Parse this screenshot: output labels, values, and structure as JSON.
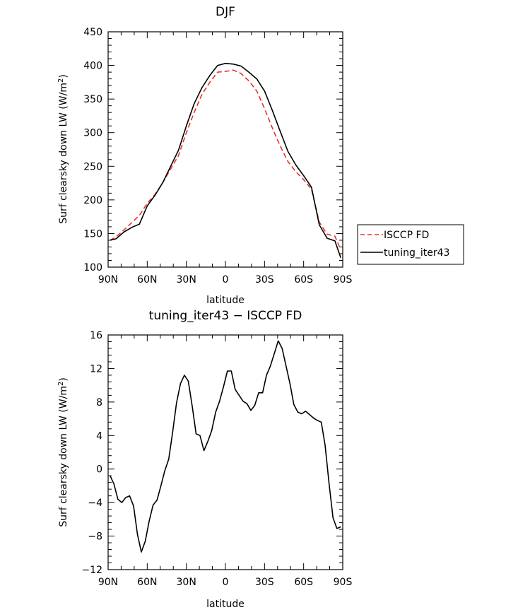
{
  "chart_data": [
    {
      "type": "line",
      "title": "DJF",
      "xlabel": "latitude",
      "ylabel": "Surf clearsky down LW (W/m",
      "ylabel_sup": "2",
      "ylabel_close": ")",
      "xlim": [
        90,
        -90
      ],
      "ylim": [
        100,
        450
      ],
      "x_tick_values": [
        90,
        60,
        30,
        0,
        -30,
        -60,
        -90
      ],
      "x_tick_labels": [
        "90N",
        "60N",
        "30N",
        "0",
        "30S",
        "60S",
        "90S"
      ],
      "y_tick_values": [
        100,
        150,
        200,
        250,
        300,
        350,
        400,
        450
      ],
      "y_tick_labels": [
        "100",
        "150",
        "200",
        "250",
        "300",
        "350",
        "400",
        "450"
      ],
      "legend": "right",
      "series": [
        {
          "name": "ISCCP FD",
          "color": "#e8312a",
          "dash": "dashed",
          "x": [
            88.5,
            84,
            78,
            72,
            66,
            60,
            54,
            48,
            42,
            36,
            30,
            24,
            18,
            12,
            6,
            0,
            -6,
            -12,
            -18,
            -24,
            -30,
            -36,
            -42,
            -48,
            -54,
            -60,
            -66,
            -72,
            -78,
            -84,
            -88.5
          ],
          "y": [
            140,
            145,
            155,
            166,
            177,
            195,
            208,
            226,
            246,
            266,
            300,
            330,
            357,
            375,
            390,
            391,
            393,
            388,
            377,
            362,
            336,
            307,
            280,
            257,
            242,
            230,
            216,
            167,
            149,
            146,
            126
          ]
        },
        {
          "name": "tuning_iter43",
          "color": "#000000",
          "dash": "solid",
          "x": [
            88.5,
            84,
            78,
            72,
            66,
            60,
            54,
            48,
            42,
            36,
            30,
            24,
            18,
            12,
            6,
            0,
            -6,
            -12,
            -18,
            -24,
            -30,
            -36,
            -42,
            -48,
            -54,
            -60,
            -66,
            -72,
            -78,
            -84,
            -88.5
          ],
          "y": [
            140,
            142,
            152,
            159,
            164,
            191,
            207,
            226,
            250,
            274,
            310,
            343,
            367,
            385,
            400,
            403,
            402,
            399,
            390,
            380,
            362,
            333,
            302,
            272,
            252,
            236,
            219,
            163,
            143,
            139,
            114
          ]
        }
      ]
    },
    {
      "type": "line",
      "title": "tuning_iter43 − ISCCP FD",
      "xlabel": "latitude",
      "ylabel": "Surf clearsky down LW (W/m",
      "ylabel_sup": "2",
      "ylabel_close": ")",
      "xlim": [
        90,
        -90
      ],
      "ylim": [
        -12,
        16
      ],
      "x_tick_values": [
        90,
        60,
        30,
        0,
        -30,
        -60,
        -90
      ],
      "x_tick_labels": [
        "90N",
        "60N",
        "30N",
        "0",
        "30S",
        "60S",
        "90S"
      ],
      "y_tick_values": [
        -12,
        -8,
        -4,
        0,
        4,
        8,
        12,
        16
      ],
      "y_tick_labels": [
        "−12",
        "−8",
        "−4",
        "0",
        "4",
        "8",
        "12",
        "16"
      ],
      "series": [
        {
          "color": "#000000",
          "dash": "solid",
          "x": [
            88.5,
            85.5,
            82.5,
            79.5,
            76.5,
            73.5,
            70.5,
            67.5,
            64.5,
            61.5,
            58.5,
            55.5,
            52.5,
            49.5,
            46.5,
            43.5,
            40.5,
            37.5,
            34.5,
            31.5,
            28.5,
            25.5,
            22.5,
            19.5,
            16.5,
            13.5,
            10.5,
            7.5,
            4.5,
            1.5,
            -1.5,
            -4.5,
            -7.5,
            -10.5,
            -13.5,
            -16.5,
            -19.5,
            -22.5,
            -25.5,
            -28.5,
            -31.5,
            -34.5,
            -37.5,
            -40.5,
            -43.5,
            -46.5,
            -49.5,
            -52.5,
            -55.5,
            -58.5,
            -61.5,
            -64.5,
            -67.5,
            -70.5,
            -73.5,
            -76.5,
            -79.5,
            -82.5,
            -85.5,
            -88.5
          ],
          "y": [
            -0.8,
            -1.8,
            -3.6,
            -4.0,
            -3.4,
            -3.2,
            -4.4,
            -7.8,
            -9.9,
            -8.6,
            -6.2,
            -4.3,
            -3.7,
            -2.0,
            -0.2,
            1.2,
            4.4,
            7.9,
            10.2,
            11.2,
            10.5,
            7.5,
            4.2,
            4.0,
            2.2,
            3.3,
            4.6,
            6.8,
            8.1,
            9.8,
            11.7,
            11.7,
            9.5,
            8.8,
            8.1,
            7.8,
            7.0,
            7.6,
            9.1,
            9.1,
            11.2,
            12.3,
            13.8,
            15.3,
            14.4,
            12.3,
            10.2,
            7.7,
            6.8,
            6.6,
            6.9,
            6.5,
            6.1,
            5.8,
            5.6,
            2.8,
            -1.7,
            -5.8,
            -7.1,
            -6.9
          ]
        }
      ]
    }
  ]
}
